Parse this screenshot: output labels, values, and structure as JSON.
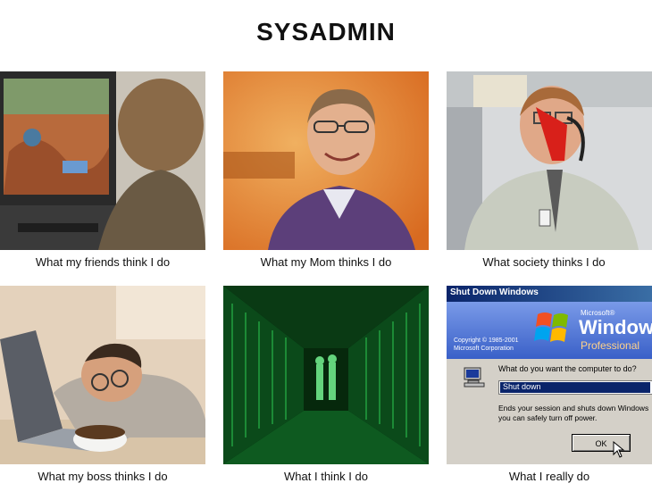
{
  "title": "SYSADMIN",
  "panels": [
    {
      "caption": "What my friends think I do",
      "scene": "child-playing-video-game"
    },
    {
      "caption": "What my Mom thinks I do",
      "scene": "smiling-man-in-purple-sweater"
    },
    {
      "caption": "What society thinks I do",
      "scene": "office-worker-with-red-stapler-on-phone"
    },
    {
      "caption": "What my boss thinks I do",
      "scene": "man-sleeping-at-laptop"
    },
    {
      "caption": "What I think I do",
      "scene": "matrix-code-corridor"
    },
    {
      "caption": "What I really do",
      "scene": "windows-shutdown-dialog"
    }
  ],
  "shutdown_dialog": {
    "titlebar": "Shut Down Windows",
    "brand_small": "Microsoft®",
    "brand_large": "Windows",
    "brand_edition": "Professional",
    "copyright_line1": "Copyright © 1985-2001",
    "copyright_line2": "Microsoft Corporation",
    "question": "What do you want the computer to do?",
    "selected_option": "Shut down",
    "description_line1": "Ends your session and shuts down Windows",
    "description_line2": "you can safely turn off power.",
    "ok_label": "OK"
  }
}
